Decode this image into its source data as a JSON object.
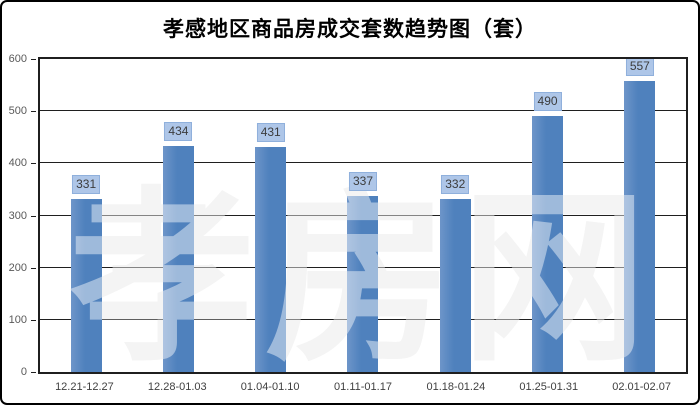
{
  "title": "孝感地区商品房成交套数趋势图（套）",
  "watermark": "孝房网",
  "colors": {
    "bar": "#4f81bd",
    "bar_light_edge": "#6d95c9",
    "value_label_bg": "#aec6e8",
    "value_label_border": "#8fb0dc",
    "grid_line": "#1f1f1f",
    "plot_border": "#1f1f1f",
    "axis_text": "#595959",
    "title_text": "#000000",
    "watermark_gray": "#ececec",
    "frame_border": "#000000"
  },
  "chart_data": {
    "type": "bar",
    "title": "孝感地区商品房成交套数趋势图（套）",
    "categories": [
      "12.21-12.27",
      "12.28-01.03",
      "01.04-01.10",
      "01.11-01.17",
      "01.18-01.24",
      "01.25-01.31",
      "02.01-02.07"
    ],
    "values": [
      331,
      434,
      431,
      337,
      332,
      490,
      557
    ],
    "xlabel": "",
    "ylabel": "",
    "ylim": [
      0,
      600
    ],
    "ytick_interval": 100,
    "grid": true,
    "legend": false,
    "bar_labels_shown": true
  }
}
